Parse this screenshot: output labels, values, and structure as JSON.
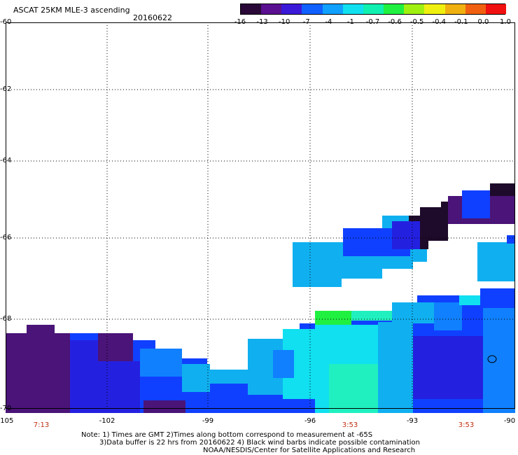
{
  "header": {
    "title": "ASCAT 25KM MLE-3 ascending",
    "date": "20160622"
  },
  "colorbar": {
    "labels": [
      "-16",
      "-13",
      "-10",
      "-7",
      "-4",
      "-1",
      "-0.7",
      "-0.6",
      "-0.5",
      "-0.4",
      "-0.1",
      "0.0",
      "1.0"
    ],
    "colors": [
      "#2a0838",
      "#5a1090",
      "#3a1ad8",
      "#1060ff",
      "#10a0ff",
      "#10e0f0",
      "#10f0b0",
      "#20f040",
      "#a0f010",
      "#f0f010",
      "#f0b010",
      "#f06010",
      "#f01010"
    ]
  },
  "map": {
    "y_axis_labels": [
      "-60",
      "-62",
      "-64",
      "-66",
      "-68",
      "-70"
    ],
    "x_axis_labels": [
      "-105",
      "-102",
      "-99",
      "-96",
      "-93",
      "-90"
    ],
    "time_labels": [
      "7:13",
      "3:53",
      "3:53"
    ],
    "colors": {
      "dark": "#1e0a2a",
      "purple": "#4a1478",
      "deep_blue": "#2420e0",
      "blue": "#1040ff",
      "mid_blue": "#1080ff",
      "light_blue": "#10b0f0",
      "cyan": "#10e0f0",
      "aqua": "#20f0c0",
      "green": "#20f040"
    }
  },
  "notes": {
    "line1": "Note: 1) Times are GMT 2)Times along bottom correspond to measurement at -65S",
    "line2": "3)Data buffer is 22 hrs from 20160622 4) Black wind barbs indicate possible contamination",
    "line3": "NOAA/NESDIS/Center for Satellite Applications and Research"
  }
}
